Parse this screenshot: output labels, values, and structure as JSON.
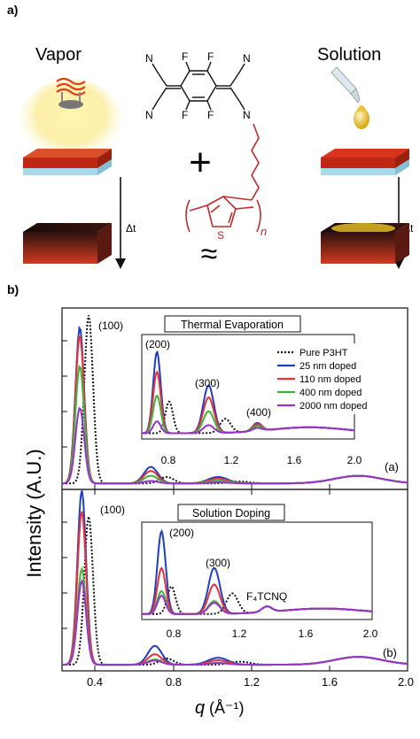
{
  "panel_a": {
    "label": "a)",
    "vapor_label": "Vapor",
    "solution_label": "Solution",
    "delta_t": "Δt",
    "plus": "+",
    "approx": "≈",
    "molecule_atoms": [
      "N",
      "N",
      "F",
      "F",
      "F",
      "F",
      "N",
      "N",
      "S"
    ],
    "repeat_n": "n",
    "colors": {
      "substrate_top": "#c8281a",
      "substrate_side": "#a8d8ea",
      "doped_film": "#2a0f0c",
      "polymer": "#c0282a",
      "drop": "#e0b420"
    }
  },
  "panel_b": {
    "label": "b)",
    "ylabel": "Intensity (A.U.)",
    "xlabel_q": "q",
    "xlabel_unit": "(Å⁻¹)",
    "legend_entries": [
      "Pure P3HT",
      "25 nm doped",
      "110 nm doped",
      "400 nm doped",
      "2000 nm doped"
    ],
    "series_colors": [
      "#111111",
      "#1f3fbf",
      "#e8323a",
      "#3cb43c",
      "#9932cc"
    ],
    "top": {
      "title": "Thermal Evaporation",
      "tag": "(a)",
      "main_peak_label": "(100)",
      "inset_peak_labels": [
        "(200)",
        "(300)",
        "(400)"
      ],
      "inset_ticks": [
        "0.8",
        "1.2",
        "1.6",
        "2.0"
      ]
    },
    "bottom": {
      "title": "Solution Doping",
      "tag": "(b)",
      "main_peak_label": "(100)",
      "inset_peak_labels": [
        "(200)",
        "(300)"
      ],
      "f4tcnq_label": "F₄TCNQ",
      "inset_ticks": [
        "0.8",
        "1.2",
        "1.6",
        "2.0"
      ]
    },
    "main_ticks": [
      "0.4",
      "0.8",
      "1.2",
      "1.6",
      "2.0"
    ]
  },
  "chart_data": [
    {
      "type": "line",
      "panel": "(a)",
      "title": "Thermal Evaporation",
      "xlabel": "q (Å⁻¹)",
      "ylabel": "Intensity (A.U.)",
      "xlim": [
        0.25,
        2.0
      ],
      "peaks_q": {
        "(100)": 0.38,
        "(200)": 0.75,
        "(300)": 1.12,
        "(400)": 1.5
      },
      "series": [
        {
          "name": "Pure P3HT",
          "peak_100_q": 0.385,
          "peak_100": 1.0,
          "peak_200_q": 0.78,
          "peak_200": 0.32,
          "peak_300_q": 1.15,
          "peak_300": 0.14,
          "peak_400": 0.06
        },
        {
          "name": "25 nm doped",
          "peak_100_q": 0.34,
          "peak_100": 0.93,
          "peak_200_q": 0.7,
          "peak_200": 0.82,
          "peak_300_q": 1.04,
          "peak_300": 0.48,
          "peak_400": 0.08
        },
        {
          "name": "110 nm doped",
          "peak_100_q": 0.34,
          "peak_100": 0.88,
          "peak_200_q": 0.7,
          "peak_200": 0.62,
          "peak_300_q": 1.04,
          "peak_300": 0.36,
          "peak_400": 0.07
        },
        {
          "name": "400 nm doped",
          "peak_100_q": 0.34,
          "peak_100": 0.7,
          "peak_200_q": 0.7,
          "peak_200": 0.38,
          "peak_300_q": 1.04,
          "peak_300": 0.22,
          "peak_400": 0.05
        },
        {
          "name": "2000 nm doped",
          "peak_100_q": 0.34,
          "peak_100": 0.45,
          "peak_200_q": 0.7,
          "peak_200": 0.12,
          "peak_300_q": 1.04,
          "peak_300": 0.08,
          "peak_400": 0.03
        }
      ]
    },
    {
      "type": "line",
      "panel": "(b)",
      "title": "Solution Doping",
      "xlabel": "q (Å⁻¹)",
      "ylabel": "Intensity (A.U.)",
      "xlim": [
        0.25,
        2.0
      ],
      "series": [
        {
          "name": "Pure P3HT",
          "peak_100_q": 0.385,
          "peak_100": 0.85,
          "peak_200_q": 0.78,
          "peak_200": 0.3,
          "peak_300_q": 1.15,
          "peak_300": 0.22
        },
        {
          "name": "25 nm doped",
          "peak_100_q": 0.35,
          "peak_100": 1.0,
          "peak_200_q": 0.72,
          "peak_200": 0.9,
          "peak_300_q": 1.04,
          "peak_300": 0.5
        },
        {
          "name": "110 nm doped",
          "peak_100_q": 0.35,
          "peak_100": 0.88,
          "peak_200_q": 0.72,
          "peak_200": 0.5,
          "peak_300_q": 1.04,
          "peak_300": 0.32
        },
        {
          "name": "400 nm doped",
          "peak_100_q": 0.35,
          "peak_100": 0.55,
          "peak_200_q": 0.72,
          "peak_200": 0.25,
          "peak_300_q": 1.04,
          "peak_300": 0.14
        },
        {
          "name": "2000 nm doped",
          "peak_100_q": 0.35,
          "peak_100": 0.48,
          "peak_200_q": 0.72,
          "peak_200": 0.2,
          "peak_300_q": 1.04,
          "peak_300": 0.12
        }
      ]
    }
  ]
}
